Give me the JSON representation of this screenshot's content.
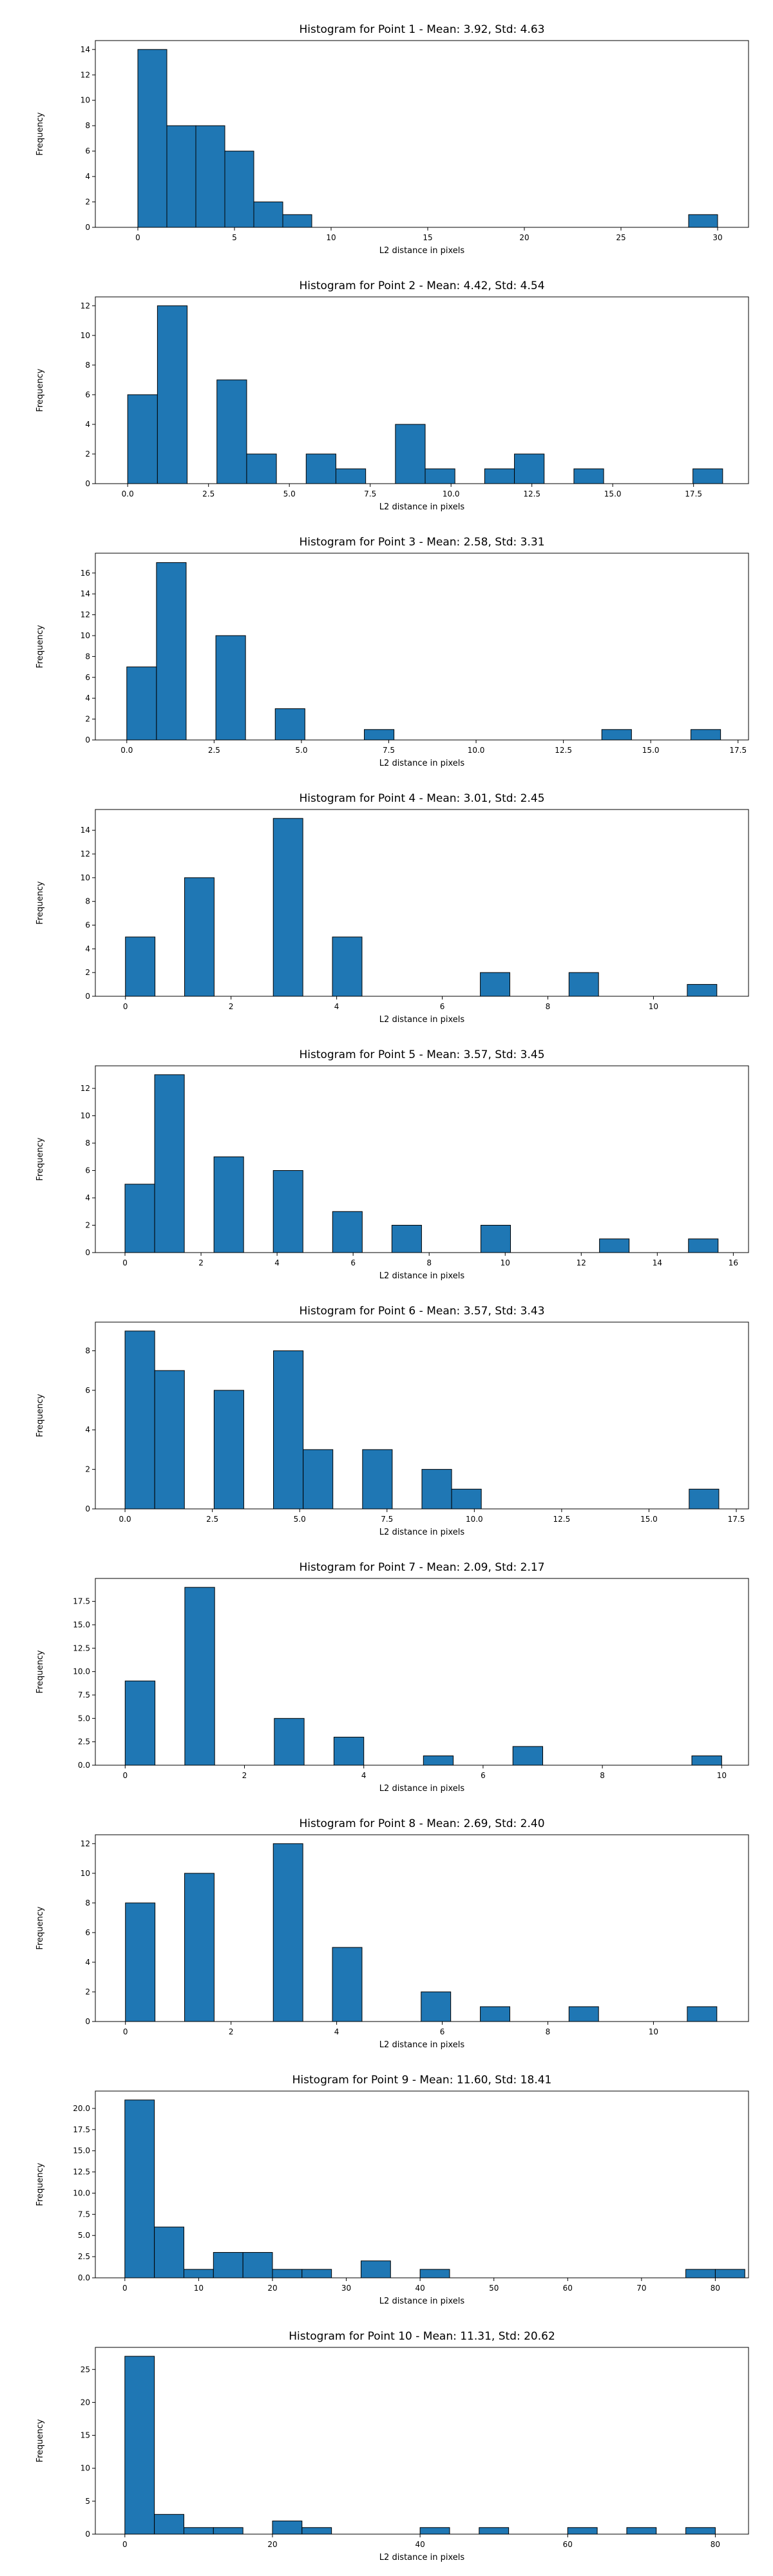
{
  "chart_data": [
    {
      "type": "bar",
      "title": "Histogram for Point 1 - Mean: 3.92, Std: 4.63",
      "xlabel": "L2 distance in pixels",
      "ylabel": "Frequency",
      "xlim": [
        -2.2,
        31.6
      ],
      "ylim": [
        0,
        14.7
      ],
      "xticks": [
        0,
        5,
        10,
        15,
        20,
        25,
        30
      ],
      "xtick_labels": [
        "0",
        "5",
        "10",
        "15",
        "20",
        "25",
        "30"
      ],
      "yticks": [
        0,
        2,
        4,
        6,
        8,
        10,
        12,
        14
      ],
      "ytick_labels": [
        "0",
        "2",
        "4",
        "6",
        "8",
        "10",
        "12",
        "14"
      ],
      "bins": [
        {
          "x0": 0.0,
          "x1": 1.5,
          "count": 14
        },
        {
          "x0": 1.5,
          "x1": 3.0,
          "count": 8
        },
        {
          "x0": 3.0,
          "x1": 4.5,
          "count": 8
        },
        {
          "x0": 4.5,
          "x1": 6.0,
          "count": 6
        },
        {
          "x0": 6.0,
          "x1": 7.5,
          "count": 2
        },
        {
          "x0": 7.5,
          "x1": 9.0,
          "count": 1
        },
        {
          "x0": 28.5,
          "x1": 30.0,
          "count": 1
        }
      ]
    },
    {
      "type": "bar",
      "title": "Histogram for Point 2 - Mean: 4.42, Std: 4.54",
      "xlabel": "L2 distance in pixels",
      "ylabel": "Frequency",
      "xlim": [
        -1.0,
        19.2
      ],
      "ylim": [
        0,
        12.6
      ],
      "xticks": [
        0,
        2.5,
        5,
        7.5,
        10,
        12.5,
        15,
        17.5
      ],
      "xtick_labels": [
        "0.0",
        "2.5",
        "5.0",
        "7.5",
        "10.0",
        "12.5",
        "15.0",
        "17.5"
      ],
      "yticks": [
        0,
        2,
        4,
        6,
        8,
        10,
        12
      ],
      "ytick_labels": [
        "0",
        "2",
        "4",
        "6",
        "8",
        "10",
        "12"
      ],
      "bins": [
        {
          "x0": 0.0,
          "x1": 0.92,
          "count": 6
        },
        {
          "x0": 0.92,
          "x1": 1.84,
          "count": 12
        },
        {
          "x0": 2.76,
          "x1": 3.68,
          "count": 7
        },
        {
          "x0": 3.68,
          "x1": 4.6,
          "count": 2
        },
        {
          "x0": 5.52,
          "x1": 6.44,
          "count": 2
        },
        {
          "x0": 6.44,
          "x1": 7.36,
          "count": 1
        },
        {
          "x0": 8.28,
          "x1": 9.2,
          "count": 4
        },
        {
          "x0": 9.2,
          "x1": 10.12,
          "count": 1
        },
        {
          "x0": 11.04,
          "x1": 11.96,
          "count": 1
        },
        {
          "x0": 11.96,
          "x1": 12.88,
          "count": 2
        },
        {
          "x0": 13.8,
          "x1": 14.72,
          "count": 1
        },
        {
          "x0": 17.48,
          "x1": 18.4,
          "count": 1
        }
      ]
    },
    {
      "type": "bar",
      "title": "Histogram for Point 3 - Mean: 2.58, Std: 3.31",
      "xlabel": "L2 distance in pixels",
      "ylabel": "Frequency",
      "xlim": [
        -0.9,
        17.8
      ],
      "ylim": [
        0,
        17.9
      ],
      "xticks": [
        0,
        2.5,
        5,
        7.5,
        10,
        12.5,
        15,
        17.5
      ],
      "xtick_labels": [
        "0.0",
        "2.5",
        "5.0",
        "7.5",
        "10.0",
        "12.5",
        "15.0",
        "17.5"
      ],
      "yticks": [
        0,
        2,
        4,
        6,
        8,
        10,
        12,
        14,
        16
      ],
      "ytick_labels": [
        "0",
        "2",
        "4",
        "6",
        "8",
        "10",
        "12",
        "14",
        "16"
      ],
      "bins": [
        {
          "x0": 0.0,
          "x1": 0.85,
          "count": 7
        },
        {
          "x0": 0.85,
          "x1": 1.7,
          "count": 17
        },
        {
          "x0": 2.55,
          "x1": 3.4,
          "count": 10
        },
        {
          "x0": 4.25,
          "x1": 5.1,
          "count": 3
        },
        {
          "x0": 6.8,
          "x1": 7.65,
          "count": 1
        },
        {
          "x0": 13.6,
          "x1": 14.45,
          "count": 1
        },
        {
          "x0": 16.15,
          "x1": 17.0,
          "count": 1
        }
      ]
    },
    {
      "type": "bar",
      "title": "Histogram for Point 4 - Mean: 3.01, Std: 2.45",
      "xlabel": "L2 distance in pixels",
      "ylabel": "Frequency",
      "xlim": [
        -0.57,
        11.8
      ],
      "ylim": [
        0,
        15.75
      ],
      "xticks": [
        0,
        2,
        4,
        6,
        8,
        10
      ],
      "xtick_labels": [
        "0",
        "2",
        "4",
        "6",
        "8",
        "10"
      ],
      "yticks": [
        0,
        2,
        4,
        6,
        8,
        10,
        12,
        14
      ],
      "ytick_labels": [
        "0",
        "2",
        "4",
        "6",
        "8",
        "10",
        "12",
        "14"
      ],
      "bins": [
        {
          "x0": 0.0,
          "x1": 0.56,
          "count": 5
        },
        {
          "x0": 1.12,
          "x1": 1.68,
          "count": 10
        },
        {
          "x0": 2.8,
          "x1": 3.36,
          "count": 15
        },
        {
          "x0": 3.92,
          "x1": 4.48,
          "count": 5
        },
        {
          "x0": 6.72,
          "x1": 7.28,
          "count": 2
        },
        {
          "x0": 8.4,
          "x1": 8.96,
          "count": 2
        },
        {
          "x0": 10.64,
          "x1": 11.2,
          "count": 1
        }
      ]
    },
    {
      "type": "bar",
      "title": "Histogram for Point 5 - Mean: 3.57, Std: 3.45",
      "xlabel": "L2 distance in pixels",
      "ylabel": "Frequency",
      "xlim": [
        -0.78,
        16.4
      ],
      "ylim": [
        0,
        13.65
      ],
      "xticks": [
        0,
        2,
        4,
        6,
        8,
        10,
        12,
        14,
        16
      ],
      "xtick_labels": [
        "0",
        "2",
        "4",
        "6",
        "8",
        "10",
        "12",
        "14",
        "16"
      ],
      "yticks": [
        0,
        2,
        4,
        6,
        8,
        10,
        12
      ],
      "ytick_labels": [
        "0",
        "2",
        "4",
        "6",
        "8",
        "10",
        "12"
      ],
      "bins": [
        {
          "x0": 0.0,
          "x1": 0.78,
          "count": 5
        },
        {
          "x0": 0.78,
          "x1": 1.56,
          "count": 13
        },
        {
          "x0": 2.34,
          "x1": 3.12,
          "count": 7
        },
        {
          "x0": 3.9,
          "x1": 4.68,
          "count": 6
        },
        {
          "x0": 5.46,
          "x1": 6.24,
          "count": 3
        },
        {
          "x0": 7.02,
          "x1": 7.8,
          "count": 2
        },
        {
          "x0": 9.36,
          "x1": 10.14,
          "count": 2
        },
        {
          "x0": 12.48,
          "x1": 13.26,
          "count": 1
        },
        {
          "x0": 14.82,
          "x1": 15.6,
          "count": 1
        }
      ]
    },
    {
      "type": "bar",
      "title": "Histogram for Point 6 - Mean: 3.57, Std: 3.43",
      "xlabel": "L2 distance in pixels",
      "ylabel": "Frequency",
      "xlim": [
        -0.85,
        17.85
      ],
      "ylim": [
        0,
        9.45
      ],
      "xticks": [
        0,
        2.5,
        5,
        7.5,
        10,
        12.5,
        15,
        17.5
      ],
      "xtick_labels": [
        "0.0",
        "2.5",
        "5.0",
        "7.5",
        "10.0",
        "12.5",
        "15.0",
        "17.5"
      ],
      "yticks": [
        0,
        2,
        4,
        6,
        8
      ],
      "ytick_labels": [
        "0",
        "2",
        "4",
        "6",
        "8"
      ],
      "bins": [
        {
          "x0": 0.0,
          "x1": 0.85,
          "count": 9
        },
        {
          "x0": 0.85,
          "x1": 1.7,
          "count": 7
        },
        {
          "x0": 2.55,
          "x1": 3.4,
          "count": 6
        },
        {
          "x0": 4.25,
          "x1": 5.1,
          "count": 8
        },
        {
          "x0": 5.1,
          "x1": 5.95,
          "count": 3
        },
        {
          "x0": 6.8,
          "x1": 7.65,
          "count": 3
        },
        {
          "x0": 8.5,
          "x1": 9.35,
          "count": 2
        },
        {
          "x0": 9.35,
          "x1": 10.2,
          "count": 1
        },
        {
          "x0": 16.15,
          "x1": 17.0,
          "count": 1
        }
      ]
    },
    {
      "type": "bar",
      "title": "Histogram for Point 7 - Mean: 2.09, Std: 2.17",
      "xlabel": "L2 distance in pixels",
      "ylabel": "Frequency",
      "xlim": [
        -0.5,
        10.45
      ],
      "ylim": [
        0,
        19.95
      ],
      "xticks": [
        0,
        2,
        4,
        6,
        8,
        10
      ],
      "xtick_labels": [
        "0",
        "2",
        "4",
        "6",
        "8",
        "10"
      ],
      "yticks": [
        0,
        2.5,
        5,
        7.5,
        10,
        12.5,
        15,
        17.5
      ],
      "ytick_labels": [
        "0.0",
        "2.5",
        "5.0",
        "7.5",
        "10.0",
        "12.5",
        "15.0",
        "17.5"
      ],
      "bins": [
        {
          "x0": 0.0,
          "x1": 0.5,
          "count": 9
        },
        {
          "x0": 1.0,
          "x1": 1.5,
          "count": 19
        },
        {
          "x0": 2.5,
          "x1": 3.0,
          "count": 5
        },
        {
          "x0": 3.5,
          "x1": 4.0,
          "count": 3
        },
        {
          "x0": 5.0,
          "x1": 5.5,
          "count": 1
        },
        {
          "x0": 6.5,
          "x1": 7.0,
          "count": 2
        },
        {
          "x0": 9.5,
          "x1": 10.0,
          "count": 1
        }
      ]
    },
    {
      "type": "bar",
      "title": "Histogram for Point 8 - Mean: 2.69, Std: 2.40",
      "xlabel": "L2 distance in pixels",
      "ylabel": "Frequency",
      "xlim": [
        -0.57,
        11.8
      ],
      "ylim": [
        0,
        12.6
      ],
      "xticks": [
        0,
        2,
        4,
        6,
        8,
        10
      ],
      "xtick_labels": [
        "0",
        "2",
        "4",
        "6",
        "8",
        "10"
      ],
      "yticks": [
        0,
        2,
        4,
        6,
        8,
        10,
        12
      ],
      "ytick_labels": [
        "0",
        "2",
        "4",
        "6",
        "8",
        "10",
        "12"
      ],
      "bins": [
        {
          "x0": 0.0,
          "x1": 0.56,
          "count": 8
        },
        {
          "x0": 1.12,
          "x1": 1.68,
          "count": 10
        },
        {
          "x0": 2.8,
          "x1": 3.36,
          "count": 12
        },
        {
          "x0": 3.92,
          "x1": 4.48,
          "count": 5
        },
        {
          "x0": 5.6,
          "x1": 6.16,
          "count": 2
        },
        {
          "x0": 6.72,
          "x1": 7.28,
          "count": 1
        },
        {
          "x0": 8.4,
          "x1": 8.96,
          "count": 1
        },
        {
          "x0": 10.64,
          "x1": 11.2,
          "count": 1
        }
      ]
    },
    {
      "type": "bar",
      "title": "Histogram for Point 9 - Mean: 11.60, Std: 18.41",
      "xlabel": "L2 distance in pixels",
      "ylabel": "Frequency",
      "xlim": [
        -4.0,
        84.5
      ],
      "ylim": [
        0,
        22.05
      ],
      "xticks": [
        0,
        10,
        20,
        30,
        40,
        50,
        60,
        70,
        80
      ],
      "xtick_labels": [
        "0",
        "10",
        "20",
        "30",
        "40",
        "50",
        "60",
        "70",
        "80"
      ],
      "yticks": [
        0,
        2.5,
        5,
        7.5,
        10,
        12.5,
        15,
        17.5,
        20
      ],
      "ytick_labels": [
        "0.0",
        "2.5",
        "5.0",
        "7.5",
        "10.0",
        "12.5",
        "15.0",
        "17.5",
        "20.0"
      ],
      "bins": [
        {
          "x0": 0.0,
          "x1": 4.0,
          "count": 21
        },
        {
          "x0": 4.0,
          "x1": 8.0,
          "count": 6
        },
        {
          "x0": 8.0,
          "x1": 12.0,
          "count": 1
        },
        {
          "x0": 12.0,
          "x1": 16.0,
          "count": 3
        },
        {
          "x0": 16.0,
          "x1": 20.0,
          "count": 3
        },
        {
          "x0": 20.0,
          "x1": 24.0,
          "count": 1
        },
        {
          "x0": 24.0,
          "x1": 28.0,
          "count": 1
        },
        {
          "x0": 32.0,
          "x1": 36.0,
          "count": 2
        },
        {
          "x0": 40.0,
          "x1": 44.0,
          "count": 1
        },
        {
          "x0": 76.0,
          "x1": 80.0,
          "count": 1
        },
        {
          "x0": 80.0,
          "x1": 84.0,
          "count": 1
        }
      ]
    },
    {
      "type": "bar",
      "title": "Histogram for Point 10 - Mean: 11.31, Std: 20.62",
      "xlabel": "L2 distance in pixels",
      "ylabel": "Frequency",
      "xlim": [
        -4.0,
        84.5
      ],
      "ylim": [
        0,
        28.35
      ],
      "xticks": [
        0,
        20,
        40,
        60,
        80
      ],
      "xtick_labels": [
        "0",
        "20",
        "40",
        "60",
        "80"
      ],
      "yticks": [
        0,
        5,
        10,
        15,
        20,
        25
      ],
      "ytick_labels": [
        "0",
        "5",
        "10",
        "15",
        "20",
        "25"
      ],
      "bins": [
        {
          "x0": 0.0,
          "x1": 4.0,
          "count": 27
        },
        {
          "x0": 4.0,
          "x1": 8.0,
          "count": 3
        },
        {
          "x0": 8.0,
          "x1": 12.0,
          "count": 1
        },
        {
          "x0": 12.0,
          "x1": 16.0,
          "count": 1
        },
        {
          "x0": 20.0,
          "x1": 24.0,
          "count": 2
        },
        {
          "x0": 24.0,
          "x1": 28.0,
          "count": 1
        },
        {
          "x0": 40.0,
          "x1": 44.0,
          "count": 1
        },
        {
          "x0": 48.0,
          "x1": 52.0,
          "count": 1
        },
        {
          "x0": 60.0,
          "x1": 64.0,
          "count": 1
        },
        {
          "x0": 68.0,
          "x1": 72.0,
          "count": 1
        },
        {
          "x0": 76.0,
          "x1": 80.0,
          "count": 1
        }
      ]
    }
  ]
}
